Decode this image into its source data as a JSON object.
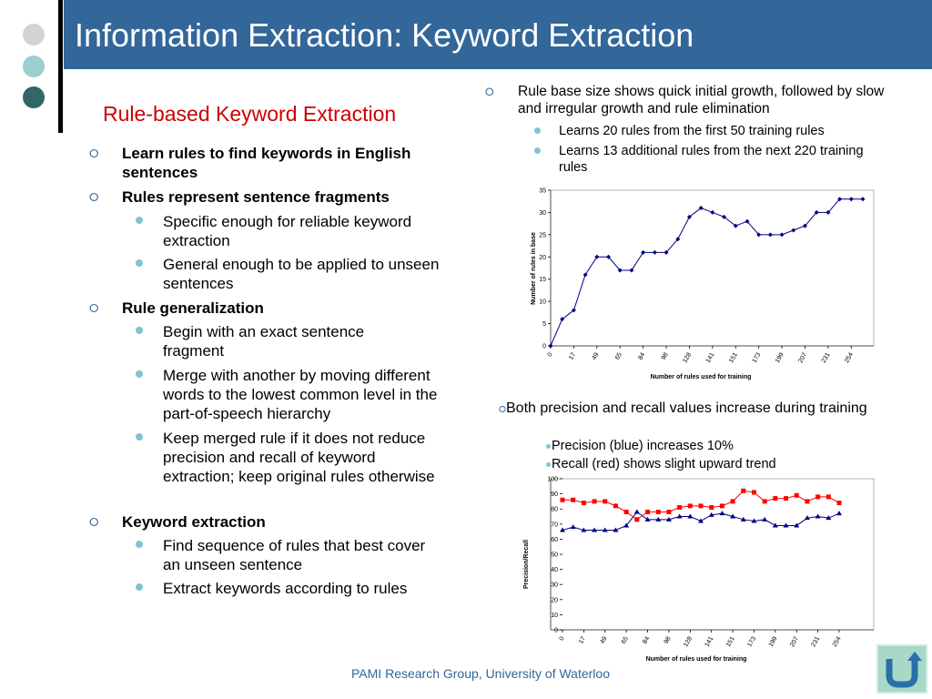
{
  "slide": {
    "title": "Information Extraction: Keyword Extraction",
    "subtitle": "Rule-based Keyword Extraction",
    "footer": "PAMI Research Group, University of Waterloo"
  },
  "left_bullets": [
    {
      "text": "Learn rules to find keywords in English sentences",
      "subs": []
    },
    {
      "text": "Rules represent sentence fragments",
      "subs": [
        "Specific enough for reliable keyword extraction",
        "General enough to be applied to unseen sentences"
      ]
    },
    {
      "text": "Rule generalization",
      "subs": [
        "Begin with an exact sentence fragment",
        "Merge with another by moving different words to the lowest common level in the part-of-speech hierarchy",
        "Keep merged rule if it does not reduce precision and recall of keyword extraction; keep original rules otherwise"
      ]
    },
    {
      "text": "Keyword extraction",
      "subs": [
        "Find sequence of rules that best cover an unseen sentence",
        "Extract keywords according to rules"
      ]
    }
  ],
  "right_top": {
    "text": "Rule base size shows quick initial growth, followed by slow and irregular growth and rule elimination",
    "subs": [
      "Learns 20 rules from the first 50 training rules",
      "Learns 13 additional rules from the next 220 training rules"
    ]
  },
  "right_mid": {
    "text": "Both precision and recall values increase during training",
    "subs": [
      "Precision (blue) increases 10%",
      "Recall (red) shows slight upward trend"
    ]
  },
  "chart_data": [
    {
      "type": "line",
      "xlabel": "Number of rules used for training",
      "ylabel": "Number of rules in base",
      "ylim": [
        0,
        35
      ],
      "yticks": [
        0,
        5,
        10,
        15,
        20,
        25,
        30,
        35
      ],
      "tick_labels": [
        "0",
        "17",
        "49",
        "65",
        "84",
        "98",
        "128",
        "141",
        "151",
        "173",
        "199",
        "207",
        "231",
        "254"
      ],
      "series": [
        {
          "color": "#000080",
          "values": [
            0,
            6,
            8,
            16,
            20,
            20,
            17,
            17,
            21,
            21,
            21,
            24,
            29,
            31,
            30,
            29,
            27,
            28,
            25,
            25,
            25,
            26,
            27,
            30,
            30,
            33,
            33,
            33
          ]
        }
      ]
    },
    {
      "type": "line",
      "xlabel": "Number of rules used for training",
      "ylabel": "Precision/Recall",
      "ylim": [
        0,
        100
      ],
      "yticks": [
        0,
        10,
        20,
        30,
        40,
        50,
        60,
        70,
        80,
        90,
        100
      ],
      "tick_labels": [
        "0",
        "17",
        "49",
        "65",
        "84",
        "98",
        "128",
        "141",
        "151",
        "173",
        "199",
        "207",
        "231",
        "254"
      ],
      "series": [
        {
          "color": "#000080",
          "values": [
            66,
            68,
            66,
            66,
            66,
            66,
            69,
            78,
            73,
            73,
            73,
            75,
            75,
            72,
            76,
            77,
            75,
            73,
            72,
            73,
            69,
            69,
            69,
            74,
            75,
            74,
            77
          ]
        },
        {
          "color": "#ff0000",
          "values": [
            86,
            86,
            84,
            85,
            85,
            82,
            78,
            73,
            78,
            78,
            78,
            81,
            82,
            82,
            81,
            82,
            85,
            92,
            91,
            85,
            87,
            87,
            89,
            85,
            88,
            88,
            84
          ]
        }
      ]
    }
  ]
}
